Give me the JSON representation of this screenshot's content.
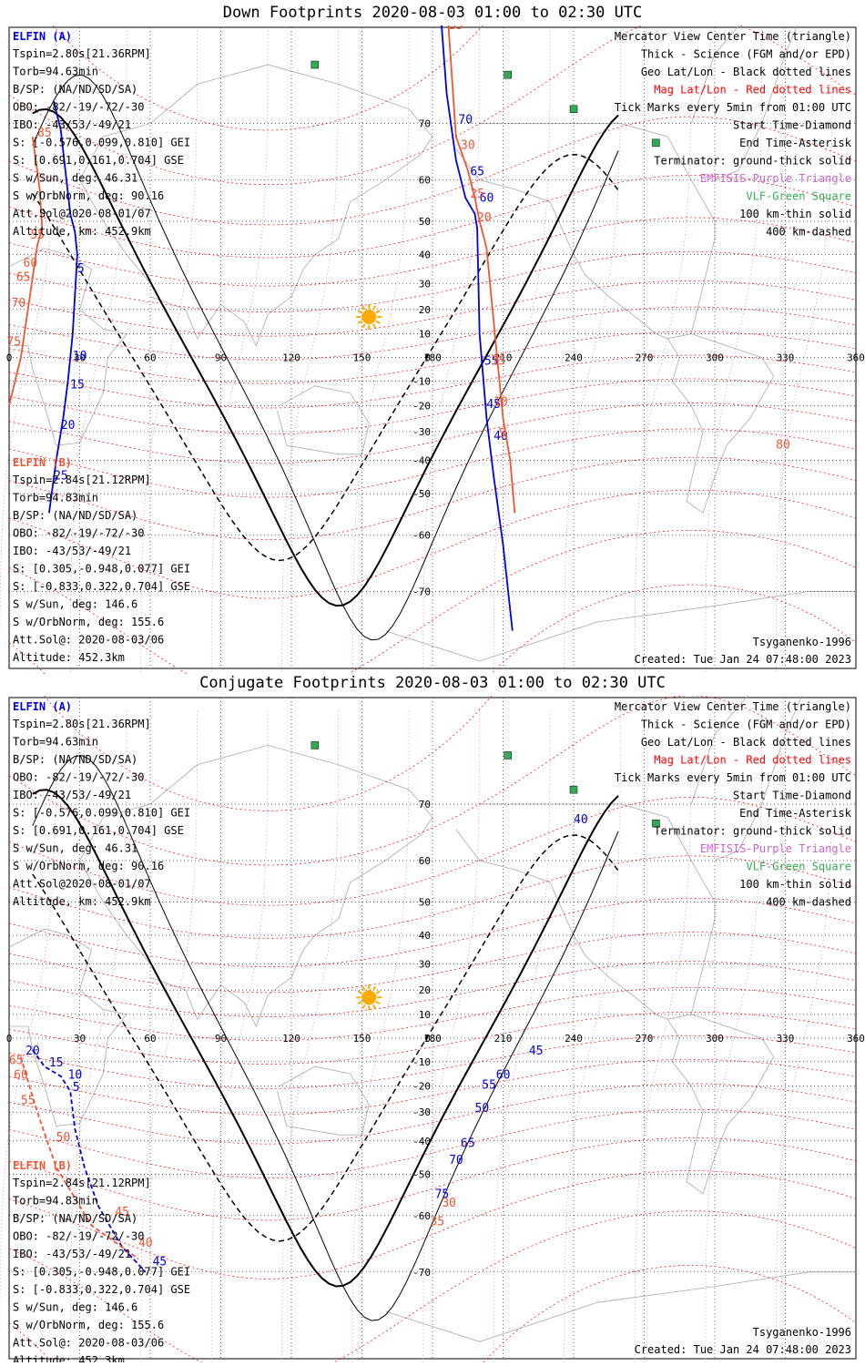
{
  "panels": [
    {
      "key": "down",
      "title": "Down Footprints 2020-08-03 01:00 to 02:30 UTC",
      "elfin_a": {
        "name": "ELFIN (A)",
        "lines": [
          "Tspin=2.80s[21.36RPM]",
          "Torb=94.63min",
          "B/SP: (NA/ND/SD/SA)",
          "OBO: -82/-19/-72/-30",
          "IBO: -43/53/-49/21",
          "S: [-0.576,0.099,0.810] GEI",
          "S: [0.691,0.161,0.704] GSE",
          "S w/Sun, deg: 46.31",
          "S w/OrbNorm, deg: 90.16",
          "Att.Sol@2020-08-01/07",
          "Altitude, km: 452.9km"
        ]
      },
      "elfin_b": {
        "name": "ELFIN (B)",
        "lines": [
          "Tspin=2.84s[21.12RPM]",
          "Torb=94.83min",
          "B/SP: (NA/ND/SD/SA)",
          "OBO: -82/-19/-72/-30",
          "IBO: -43/53/-49/21",
          "S: [0.305,-0.948,0.077] GEI",
          "S: [-0.833,0.322,0.704] GSE",
          "S w/Sun, deg: 146.6",
          "S w/OrbNorm, deg: 155.6",
          "Att.Sol@: 2020-08-03/06",
          "Altitude: 452.3km"
        ]
      },
      "legend": [
        "Mercator View Center Time (triangle)",
        "Thick - Science (FGM and/or EPD)",
        "Geo Lat/Lon - Black dotted lines",
        "Mag Lat/Lon - Red dotted lines",
        "Tick Marks every 5min from 01:00 UTC",
        "Start Time-Diamond",
        "End Time-Asterisk",
        "Terminator: ground-thick solid",
        "EMFISIS-Purple Triangle",
        "VLF-Green Square",
        "100 km-thin solid",
        "400 km-dashed"
      ],
      "model": "Tsyganenko-1996",
      "created": "Created: Tue Jan 24 07:48:00 2023"
    },
    {
      "key": "conj",
      "title": "Conjugate Footprints 2020-08-03 01:00 to 02:30 UTC",
      "elfin_a": {
        "name": "ELFIN (A)",
        "lines": [
          "Tspin=2.80s[21.36RPM]",
          "Torb=94.63min",
          "B/SP: (NA/ND/SD/SA)",
          "OBO: -82/-19/-72/-30",
          "IBO: -43/53/-49/21",
          "S: [-0.576,0.099,0.810] GEI",
          "S: [0.691,0.161,0.704] GSE",
          "S w/Sun, deg: 46.31",
          "S w/OrbNorm, deg: 90.16",
          "Att.Sol@2020-08-01/07",
          "Altitude, km: 452.9km"
        ]
      },
      "elfin_b": {
        "name": "ELFIN (B)",
        "lines": [
          "Tspin=2.84s[21.12RPM]",
          "Torb=94.83min",
          "B/SP: (NA/ND/SD/SA)",
          "OBO: -82/-19/-72/-30",
          "IBO: -43/53/-49/21",
          "S: [0.305,-0.948,0.077] GEI",
          "S: [-0.833,0.322,0.704] GSE",
          "S w/Sun, deg: 146.6",
          "S w/OrbNorm, deg: 155.6",
          "Att.Sol@: 2020-08-03/06",
          "Altitude: 452.3km"
        ]
      },
      "legend": [
        "Mercator View Center Time (triangle)",
        "Thick - Science (FGM and/or EPD)",
        "Geo Lat/Lon - Black dotted lines",
        "Mag Lat/Lon - Red dotted lines",
        "Tick Marks every 5min from 01:00 UTC",
        "Start Time-Diamond",
        "End Time-Asterisk",
        "Terminator: ground-thick solid",
        "EMFISIS-Purple Triangle",
        "VLF-Green Square",
        "100 km-thin solid",
        "400 km-dashed"
      ],
      "model": "Tsyganenko-1996",
      "created": "Created: Tue Jan 24 07:48:00 2023"
    }
  ],
  "map": {
    "projection": "Mercator",
    "lon_range": [
      0,
      360
    ],
    "lat_ticks": [
      70,
      60,
      50,
      40,
      30,
      20,
      10,
      0,
      -10,
      -20,
      -30,
      -40,
      -50,
      -60,
      -70
    ],
    "lon_ticks": [
      0,
      30,
      60,
      90,
      120,
      150,
      180,
      210,
      240,
      270,
      300,
      330,
      360
    ],
    "vlf_stations": [
      [
        -13,
        88
      ],
      [
        89,
        82
      ],
      [
        130,
        77
      ],
      [
        212,
        76
      ],
      [
        240,
        72
      ],
      [
        275,
        67
      ]
    ],
    "sun_subsolar": [
      153,
      17
    ]
  },
  "colors": {
    "elfin_a": "#0000dd",
    "elfin_b": "#ee5533",
    "geo_grid": "#000000",
    "mag_grid": "#ff0000",
    "emfisis": "#cc66cc",
    "vlf": "#33aa55",
    "coast": "#aaaaaa",
    "sun": "#ffaa00"
  },
  "tracks": {
    "down": {
      "a": {
        "points": [
          [
            19,
            73
          ],
          [
            22,
            69
          ],
          [
            26,
            52
          ],
          [
            28,
            47
          ],
          [
            29,
            40
          ],
          [
            27,
            10
          ],
          [
            25,
            -10
          ],
          [
            23,
            -25
          ],
          [
            20,
            -40
          ],
          [
            17,
            -55
          ]
        ],
        "ticks": [
          [
            "5",
            29,
            34
          ],
          [
            "10",
            27,
            -1
          ],
          [
            "15",
            26,
            -13
          ],
          [
            "20",
            22,
            -29
          ],
          [
            "25",
            19,
            -46
          ],
          [
            "75",
            186,
            82
          ],
          [
            "70",
            191,
            70
          ],
          [
            "65",
            196,
            61
          ],
          [
            "60",
            200,
            55
          ],
          [
            "55",
            202,
            -3
          ],
          [
            "45",
            203,
            -21
          ],
          [
            "40",
            206,
            -33
          ]
        ]
      },
      "a2": {
        "points": [
          [
            183,
            82
          ],
          [
            186,
            74
          ],
          [
            190,
            64
          ],
          [
            194,
            56
          ],
          [
            198,
            52
          ],
          [
            199,
            48
          ],
          [
            200,
            10
          ],
          [
            203,
            -25
          ],
          [
            206,
            -45
          ],
          [
            210,
            -62
          ],
          [
            214,
            -75
          ]
        ]
      },
      "b": {
        "points": [
          [
            10,
            68
          ],
          [
            13,
            58
          ],
          [
            14,
            48
          ],
          [
            12,
            43
          ],
          [
            8,
            20
          ],
          [
            5,
            0
          ],
          [
            0,
            -20
          ]
        ],
        "ticks": [
          [
            "85",
            12,
            68
          ],
          [
            "55",
            9,
            45
          ],
          [
            "60",
            6,
            36
          ],
          [
            "65",
            3,
            31
          ],
          [
            "70",
            1,
            21
          ],
          [
            "75",
            -1,
            5
          ]
        ]
      },
      "b2": {
        "points": [
          [
            186,
            82
          ],
          [
            190,
            68
          ],
          [
            195,
            62
          ],
          [
            198,
            56
          ],
          [
            200,
            50
          ],
          [
            202,
            45
          ],
          [
            203,
            42
          ],
          [
            210,
            -25
          ],
          [
            213,
            -40
          ],
          [
            215,
            -55
          ]
        ],
        "ticks": [
          [
            "35",
            187,
            80
          ],
          [
            "30",
            192,
            66
          ],
          [
            "25",
            196,
            56
          ],
          [
            "20",
            199,
            50
          ],
          [
            "15",
            205,
            -3
          ],
          [
            "10",
            206,
            -20
          ],
          [
            "5",
            208,
            -32
          ],
          [
            "80",
            326,
            -36
          ]
        ]
      }
    },
    "conj": {
      "a": {
        "points": [
          [
            10,
            -5
          ],
          [
            15,
            -12
          ],
          [
            22,
            -16
          ],
          [
            26,
            -22
          ],
          [
            28,
            -36
          ],
          [
            32,
            -48
          ],
          [
            38,
            -58
          ],
          [
            48,
            -66
          ],
          [
            58,
            -70
          ]
        ],
        "ticks": [
          [
            "20",
            7,
            -7
          ],
          [
            "15",
            17,
            -12
          ],
          [
            "10",
            25,
            -17
          ],
          [
            "5",
            27,
            -22
          ],
          [
            "45",
            61,
            -69
          ],
          [
            "40",
            240,
            67
          ],
          [
            "45",
            221,
            -7
          ],
          [
            "60",
            207,
            -17
          ],
          [
            "55",
            201,
            -21
          ],
          [
            "50",
            198,
            -30
          ],
          [
            "65",
            192,
            -42
          ],
          [
            "70",
            187,
            -47
          ],
          [
            "75",
            181,
            -56
          ]
        ]
      },
      "b": {
        "points": [
          [
            5,
            -8
          ],
          [
            8,
            -18
          ],
          [
            12,
            -30
          ],
          [
            20,
            -48
          ],
          [
            35,
            -62
          ],
          [
            55,
            -68
          ]
        ],
        "ticks": [
          [
            "65",
            0,
            -11
          ],
          [
            "60",
            2,
            -17
          ],
          [
            "55",
            5,
            -27
          ],
          [
            "50",
            20,
            -40
          ],
          [
            "45",
            45,
            -60
          ],
          [
            "40",
            55,
            -66
          ],
          [
            "35",
            179,
            -62
          ],
          [
            "30",
            184,
            -58
          ]
        ]
      }
    }
  }
}
